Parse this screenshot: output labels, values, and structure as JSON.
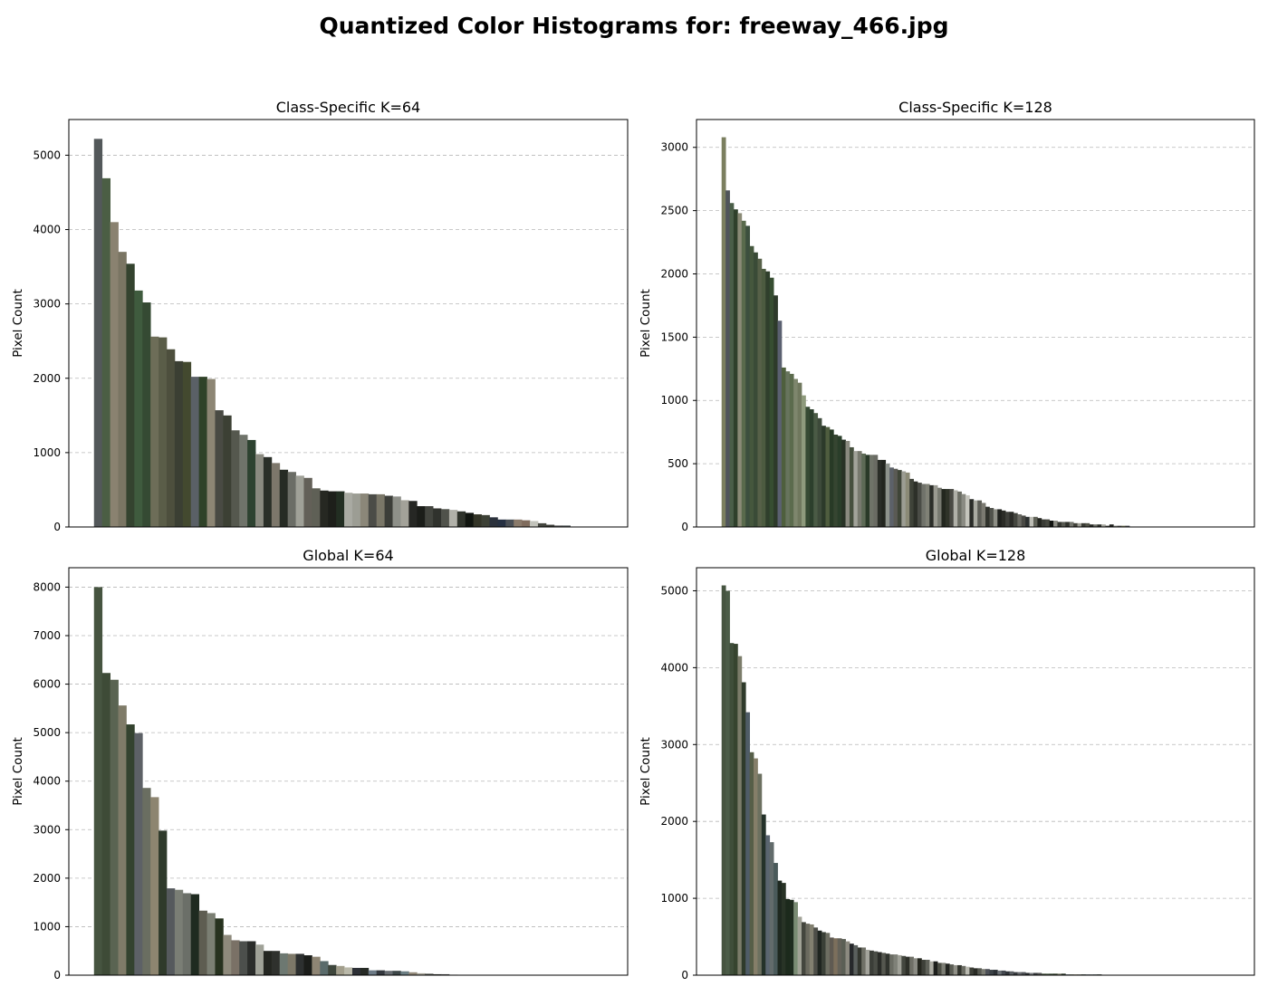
{
  "title": "Quantized Color Histograms for: freeway_466.jpg",
  "chart_data": [
    {
      "type": "bar",
      "title": "Class-Specific K=64",
      "ylabel": "Pixel Count",
      "ylim": [
        0,
        5480
      ],
      "yticks": [
        0,
        1000,
        2000,
        3000,
        4000,
        5000
      ],
      "grid": true,
      "slots": 63,
      "values": [
        5220,
        4690,
        4100,
        3700,
        3540,
        3180,
        3020,
        2560,
        2550,
        2390,
        2230,
        2220,
        2020,
        2020,
        1990,
        1570,
        1500,
        1300,
        1240,
        1170,
        980,
        940,
        860,
        770,
        740,
        690,
        660,
        520,
        490,
        480,
        480,
        460,
        450,
        450,
        440,
        440,
        420,
        410,
        360,
        350,
        280,
        280,
        250,
        240,
        230,
        210,
        190,
        170,
        160,
        130,
        100,
        100,
        100,
        90,
        80,
        50,
        30,
        20,
        20
      ],
      "colors": [
        "#53585a",
        "#4b5e44",
        "#8a8270",
        "#7a7563",
        "#34432f",
        "#3f5b3e",
        "#354a33",
        "#6d6d58",
        "#5a5d48",
        "#4d4f3d",
        "#3b3f33",
        "#43492f",
        "#5a6066",
        "#2f4228",
        "#8d8674",
        "#494a43",
        "#3c4034",
        "#55584e",
        "#6f736a",
        "#2d4230",
        "#8a8a80",
        "#2a2f28",
        "#7d776b",
        "#262b24",
        "#6b6d66",
        "#a0a198",
        "#636058",
        "#5f6056",
        "#262822",
        "#1d1f1a",
        "#222e22",
        "#a9aaa2",
        "#9c9d94",
        "#8b8779",
        "#4b4c47",
        "#7a7768",
        "#3c3e39",
        "#8e9089",
        "#a3a299",
        "#262724",
        "#1b1d19",
        "#42443e",
        "#30322d",
        "#50524b",
        "#b1b1a9",
        "#2f332b",
        "#111510",
        "#343528",
        "#3d4136",
        "#2b313c",
        "#263042",
        "#4a4f55",
        "#8a7a6a",
        "#7f6b5c",
        "#c2c3bb",
        "#44463f",
        "#3a3b35",
        "#555"
      ]
    },
    {
      "type": "bar",
      "title": "Class-Specific K=128",
      "ylabel": "Pixel Count",
      "ylim": [
        0,
        3220
      ],
      "yticks": [
        0,
        500,
        1000,
        1500,
        2000,
        2500,
        3000
      ],
      "grid": true,
      "slots": 127,
      "values": [
        3080,
        2660,
        2560,
        2510,
        2480,
        2420,
        2380,
        2220,
        2170,
        2120,
        2040,
        2020,
        1970,
        1830,
        1630,
        1260,
        1230,
        1210,
        1170,
        1140,
        1040,
        950,
        930,
        900,
        860,
        800,
        790,
        770,
        730,
        720,
        690,
        680,
        630,
        600,
        600,
        580,
        570,
        570,
        570,
        530,
        530,
        500,
        470,
        460,
        450,
        440,
        430,
        380,
        360,
        350,
        340,
        340,
        330,
        330,
        310,
        300,
        300,
        300,
        290,
        280,
        260,
        250,
        220,
        210,
        210,
        190,
        160,
        150,
        140,
        140,
        130,
        120,
        120,
        110,
        100,
        90,
        80,
        80,
        80,
        70,
        60,
        60,
        50,
        50,
        40,
        40,
        40,
        40,
        30,
        30,
        30,
        30,
        20,
        20,
        20,
        20,
        10,
        20,
        10,
        10,
        10,
        10
      ],
      "colors": [
        "#7b7f5f",
        "#4f545a",
        "#4a5e48",
        "#2f402b",
        "#8a8a76",
        "#596a4c",
        "#3c4f3e",
        "#45573d",
        "#3a4b37",
        "#566048",
        "#4c5b40",
        "#2f3f2c",
        "#364d31",
        "#2d3a2a",
        "#5a6070",
        "#4e5f3d",
        "#67745d",
        "#5b6b4d",
        "#7e866d",
        "#70785e",
        "#8e9a7c",
        "#364a33",
        "#2c3f2c",
        "#4a5a45",
        "#3d4a3a",
        "#2c3a2a",
        "#4f5d3f",
        "#283a26",
        "#364531",
        "#2a3e2a",
        "#283226",
        "#8a8a80",
        "#46503e",
        "#a2a39a",
        "#77796e",
        "#5d6a56",
        "#2a3a29",
        "#6f7368",
        "#6a6b63",
        "#2a2d27",
        "#23261f",
        "#8e938c",
        "#5c6169",
        "#5a5a54",
        "#3f4538",
        "#9c9d93",
        "#8b8a76",
        "#3f4339",
        "#2d3029",
        "#4a4c46",
        "#70726a",
        "#808176",
        "#2b2e29",
        "#9a9a91",
        "#777970",
        "#23271f",
        "#2f3329",
        "#4a4a44",
        "#b0b0a8",
        "#6c6e65",
        "#8a8b83",
        "#c5c5bd",
        "#2a2c28",
        "#a9aaa1",
        "#5d5e57",
        "#7b7a71",
        "#30322c",
        "#50524b",
        "#8d8e85",
        "#1f211d",
        "#2b2c27",
        "#3f403b",
        "#2a2b27",
        "#44463f",
        "#6a6a63",
        "#4a4a45",
        "#2c3030",
        "#bdbdb5",
        "#5f6157",
        "#23251f",
        "#3a3c36",
        "#464840",
        "#111310",
        "#8b8b83",
        "#33352f",
        "#565850",
        "#2f312b",
        "#74766e",
        "#404139",
        "#9b9b92",
        "#3a3b34",
        "#525349",
        "#262823",
        "#6e6f67",
        "#2d2f2a",
        "#a6a79e",
        "#43453f",
        "#20221e",
        "#85867e",
        "#555"
      ]
    },
    {
      "type": "bar",
      "title": "Global K=64",
      "ylabel": "Pixel Count",
      "ylim": [
        0,
        8400
      ],
      "yticks": [
        0,
        1000,
        2000,
        3000,
        4000,
        5000,
        6000,
        7000,
        8000
      ],
      "grid": true,
      "slots": 63,
      "values": [
        8000,
        6230,
        6090,
        5560,
        5170,
        4990,
        3860,
        3670,
        2980,
        1790,
        1760,
        1690,
        1670,
        1330,
        1280,
        1170,
        830,
        720,
        700,
        700,
        630,
        500,
        500,
        450,
        440,
        440,
        410,
        380,
        290,
        210,
        190,
        160,
        150,
        150,
        100,
        100,
        90,
        90,
        80,
        60,
        40,
        30,
        20,
        20,
        10
      ],
      "colors": [
        "#465440",
        "#3e4b37",
        "#5a6452",
        "#7f7b68",
        "#34432f",
        "#5d6166",
        "#6a6e61",
        "#8d8570",
        "#2f3a2b",
        "#55595d",
        "#7a7e75",
        "#6b6f68",
        "#1f2b20",
        "#5e5d51",
        "#7b7f73",
        "#27321f",
        "#8e8a7c",
        "#7a7166",
        "#4c4f4c",
        "#2b2d2b",
        "#a0a298",
        "#242621",
        "#2f312d",
        "#6d7871",
        "#7d7868",
        "#2d3030",
        "#1b1d1a",
        "#8e8574",
        "#5a6b6b",
        "#3e463c",
        "#a29e8c",
        "#b9b8a9",
        "#2d3036",
        "#262a25",
        "#6c7a86",
        "#34383e",
        "#676c71",
        "#3d4748",
        "#6b7e83",
        "#938a7a",
        "#a6a398",
        "#50524c",
        "#3a3b37",
        "#555"
      ]
    },
    {
      "type": "bar",
      "title": "Global K=128",
      "ylabel": "Pixel Count",
      "ylim": [
        0,
        5300
      ],
      "yticks": [
        0,
        1000,
        2000,
        3000,
        4000,
        5000
      ],
      "grid": true,
      "slots": 127,
      "values": [
        5070,
        5000,
        4320,
        4310,
        4150,
        3810,
        3420,
        2900,
        2820,
        2620,
        2090,
        1820,
        1730,
        1460,
        1230,
        1200,
        990,
        980,
        950,
        760,
        690,
        670,
        660,
        620,
        580,
        560,
        550,
        490,
        480,
        480,
        470,
        440,
        410,
        390,
        360,
        360,
        330,
        320,
        310,
        300,
        290,
        280,
        270,
        270,
        260,
        250,
        240,
        240,
        220,
        220,
        200,
        200,
        180,
        180,
        160,
        160,
        150,
        140,
        130,
        130,
        120,
        110,
        100,
        90,
        90,
        80,
        80,
        70,
        70,
        60,
        60,
        50,
        50,
        40,
        40,
        40,
        30,
        30,
        30,
        30,
        20,
        20,
        20,
        20,
        20,
        20,
        10,
        10,
        10,
        10,
        10,
        10,
        10,
        10,
        10
      ],
      "colors": [
        "#465440",
        "#4b5c47",
        "#3f4e3a",
        "#36442f",
        "#7b7c6a",
        "#2f3b2b",
        "#4f5c67",
        "#565e48",
        "#857e69",
        "#6c7060",
        "#24322a",
        "#5a6570",
        "#626b6b",
        "#4a5a5a",
        "#1e281f",
        "#283326",
        "#1c2a1c",
        "#1f2c1f",
        "#7a8c74",
        "#a1a296",
        "#44463e",
        "#6b6a5f",
        "#828070",
        "#4d4e48",
        "#1f2520",
        "#3a4037",
        "#6d6e62",
        "#5f5a52",
        "#7c6f5c",
        "#646259",
        "#5b5f55",
        "#8c8a80",
        "#26282b",
        "#5a5f5d",
        "#33362f",
        "#707167",
        "#a4a49c",
        "#3b3e38",
        "#4a4d46",
        "#2a2c28",
        "#55574f",
        "#30332d",
        "#6b6d64",
        "#7f8178",
        "#9fa097",
        "#44473f",
        "#2e3029",
        "#6e6f66",
        "#8a8b83",
        "#25271f",
        "#3e4039",
        "#5e6058",
        "#acaca3",
        "#1d1f1c",
        "#4b4d44",
        "#7c7d74",
        "#222420",
        "#5a5c53",
        "#8f8f86",
        "#32342d",
        "#6a6b62",
        "#b9b9b0",
        "#3d3f37",
        "#292b25",
        "#565850",
        "#7a7b72",
        "#4d5057",
        "#3b4146",
        "#2b3035",
        "#6b7075",
        "#44484f",
        "#2f3338",
        "#5a5e63",
        "#393c40",
        "#686b6f",
        "#4f5256",
        "#2d3033",
        "#797c80",
        "#3c3f42",
        "#555"
      ]
    }
  ]
}
